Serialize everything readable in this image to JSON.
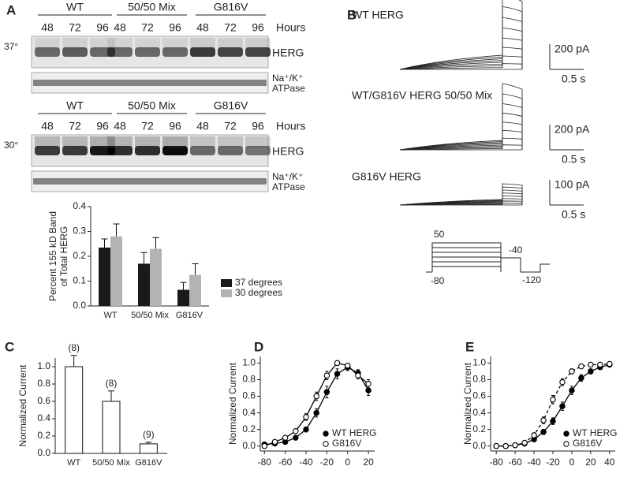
{
  "panel_labels": [
    "A",
    "B",
    "C",
    "D",
    "E"
  ],
  "blots": [
    {
      "temperature": "37°",
      "groups": [
        "WT",
        "50/50 Mix",
        "G816V"
      ],
      "hours_label": "Hours",
      "hours": [
        "48",
        "72",
        "96"
      ],
      "herg_label": "HERG",
      "atpase_label": [
        "Na⁺/K⁺",
        "ATPase"
      ]
    },
    {
      "temperature": "30°",
      "groups": [
        "WT",
        "50/50 Mix",
        "G816V"
      ],
      "hours_label": "Hours",
      "hours": [
        "48",
        "72",
        "96"
      ],
      "herg_label": "HERG",
      "atpase_label": [
        "Na⁺/K⁺",
        "ATPase"
      ]
    }
  ],
  "traces": [
    {
      "title": "WT HERG",
      "current_scale": "200 pA",
      "time_scale": "0.5 s"
    },
    {
      "title": "WT/G816V HERG 50/50 Mix",
      "current_scale": "200 pA",
      "time_scale": "0.5 s"
    },
    {
      "title": "G816V HERG",
      "current_scale": "100 pA",
      "time_scale": "0.5 s"
    }
  ],
  "protocol": {
    "labels": [
      "50",
      "-40",
      "-80",
      "-120"
    ]
  },
  "chart_data": [
    {
      "type": "bar",
      "ylabel": [
        "Percent 155 kD Band",
        "of Total HERG"
      ],
      "categories": [
        "WT",
        "50/50 Mix",
        "G816V"
      ],
      "series": [
        {
          "name": "37 degrees",
          "color": "#1a1a1a",
          "values": [
            0.235,
            0.17,
            0.065
          ],
          "errors": [
            0.035,
            0.045,
            0.03
          ]
        },
        {
          "name": "30 degrees",
          "color": "#b3b3b3",
          "values": [
            0.28,
            0.23,
            0.125
          ],
          "errors": [
            0.05,
            0.045,
            0.045
          ]
        }
      ],
      "ylim": [
        0,
        0.4
      ],
      "yticks": [
        {
          "value": 0,
          "label": "0.0"
        },
        0.1,
        0.2,
        0.3,
        0.4
      ],
      "legend": "right"
    },
    {
      "type": "bar",
      "ylabel": [
        "Normalized Current"
      ],
      "categories": [
        "WT",
        "50/50 Mix",
        "G816V"
      ],
      "series": [
        {
          "color": "#ffffff",
          "values": [
            1,
            0.6,
            0.11
          ],
          "errors": [
            0.13,
            0.12,
            0.02
          ],
          "annotations": [
            "(8)",
            "(8)",
            "(9)"
          ]
        }
      ],
      "ylim": [
        0,
        1.1
      ],
      "yticks": [
        {
          "value": 0,
          "label": "0.0"
        },
        0.2,
        0.4,
        0.6,
        0.8,
        {
          "value": 1,
          "label": "1.0"
        }
      ]
    },
    {
      "type": "scatter",
      "ylabel": [
        "Normalized Current"
      ],
      "x": [
        -80,
        -70,
        -60,
        -50,
        -40,
        -30,
        -20,
        -10,
        0,
        10,
        20
      ],
      "series": [
        {
          "name": "WT HERG",
          "color": "#000000",
          "marker": "filled",
          "line_style": "solid",
          "values": [
            0.02,
            0.03,
            0.05,
            0.1,
            0.2,
            0.4,
            0.65,
            0.87,
            0.95,
            0.88,
            0.67
          ],
          "errors": [
            0.01,
            0.01,
            0.01,
            0.02,
            0.03,
            0.05,
            0.07,
            0.06,
            0.04,
            0.04,
            0.06
          ]
        },
        {
          "name": "G816V",
          "color": "#000000",
          "marker": "open",
          "line_style": "solid",
          "values": [
            0,
            0.05,
            0.1,
            0.18,
            0.35,
            0.6,
            0.85,
            1,
            0.97,
            0.85,
            0.75
          ],
          "errors": [
            0.01,
            0.01,
            0.02,
            0.02,
            0.04,
            0.05,
            0.05,
            0.02,
            0.02,
            0.04,
            0.05
          ]
        }
      ],
      "xlim": [
        -84,
        26
      ],
      "xticks": [
        -80,
        -60,
        -40,
        -20,
        0,
        20
      ],
      "ylim": [
        -0.06,
        1.08
      ],
      "yticks": [
        {
          "value": 0,
          "label": "0.0"
        },
        0.2,
        0.4,
        0.6,
        0.8,
        {
          "value": 1,
          "label": "1.0"
        }
      ],
      "legend": "lower right"
    },
    {
      "type": "scatter",
      "ylabel": [
        "Normalized Current"
      ],
      "x": [
        -80,
        -70,
        -60,
        -50,
        -40,
        -30,
        -20,
        -10,
        0,
        10,
        20,
        30,
        40
      ],
      "series": [
        {
          "name": "WT HERG",
          "color": "#000000",
          "marker": "filled",
          "line_style": "solid",
          "values": [
            0,
            0,
            0.01,
            0.03,
            0.08,
            0.17,
            0.3,
            0.48,
            0.67,
            0.82,
            0.9,
            0.95,
            0.98
          ],
          "errors": [
            0.01,
            0.01,
            0.01,
            0.02,
            0.02,
            0.03,
            0.04,
            0.05,
            0.05,
            0.04,
            0.03,
            0.02,
            0.02
          ]
        },
        {
          "name": "G816V",
          "color": "#000000",
          "marker": "open",
          "line_style": "dashed",
          "values": [
            0,
            0,
            0.01,
            0.04,
            0.13,
            0.31,
            0.56,
            0.77,
            0.9,
            0.96,
            0.98,
            0.98,
            0.99
          ],
          "errors": [
            0.01,
            0.01,
            0.01,
            0.02,
            0.03,
            0.04,
            0.05,
            0.04,
            0.03,
            0.02,
            0.02,
            0.02,
            0.01
          ]
        }
      ],
      "xlim": [
        -86,
        46
      ],
      "xticks": [
        -80,
        -60,
        -40,
        -20,
        0,
        20,
        40
      ],
      "ylim": [
        -0.06,
        1.08
      ],
      "yticks": [
        {
          "value": 0,
          "label": "0.0"
        },
        0.2,
        0.4,
        0.6,
        0.8,
        {
          "value": 1,
          "label": "1.0"
        }
      ],
      "legend": "lower right"
    }
  ]
}
